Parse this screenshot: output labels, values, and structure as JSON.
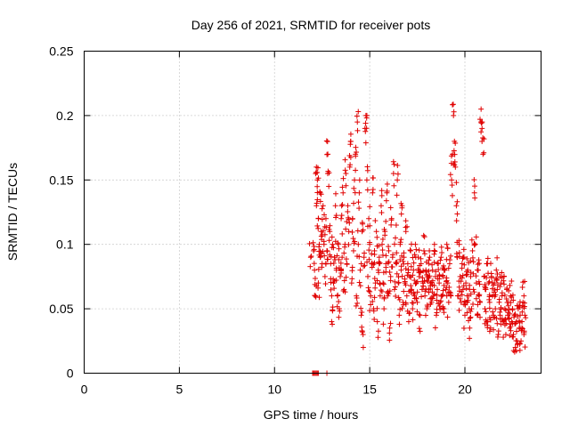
{
  "chart_data": {
    "type": "scatter",
    "title": "Day 256 of 2021, SRMTID for receiver pots",
    "xlabel": "GPS time / hours",
    "ylabel": "SRMTID / TECUs",
    "xlim": [
      0,
      24
    ],
    "ylim": [
      0,
      0.25
    ],
    "x_ticks": [
      0,
      5,
      10,
      15,
      20
    ],
    "x_tick_labels": [
      "0",
      "5",
      "10",
      "15",
      "20"
    ],
    "y_ticks": [
      0,
      0.05,
      0.1,
      0.15,
      0.2,
      0.25
    ],
    "y_tick_labels": [
      "0",
      "0.05",
      "0.1",
      "0.15",
      "0.2",
      "0.25"
    ],
    "grid": true,
    "marker": "plus",
    "series_color": "#e00000",
    "zero_points_x": [
      12.0,
      12.05,
      12.1,
      12.15,
      12.2,
      12.25,
      12.3,
      12.75
    ],
    "points": [
      [
        11.9,
        0.09
      ],
      [
        12.05,
        0.095
      ],
      [
        12.1,
        0.08
      ],
      [
        12.15,
        0.06
      ],
      [
        12.2,
        0.13
      ],
      [
        12.2,
        0.16
      ],
      [
        12.25,
        0.15
      ],
      [
        12.3,
        0.12
      ],
      [
        12.3,
        0.07
      ],
      [
        12.35,
        0.1
      ],
      [
        12.4,
        0.14
      ],
      [
        12.4,
        0.09
      ],
      [
        12.45,
        0.11
      ],
      [
        12.5,
        0.085
      ],
      [
        12.55,
        0.13
      ],
      [
        12.6,
        0.1
      ],
      [
        12.65,
        0.075
      ],
      [
        12.7,
        0.12
      ],
      [
        12.75,
        0.095
      ],
      [
        12.8,
        0.17
      ],
      [
        12.85,
        0.145
      ],
      [
        12.9,
        0.11
      ],
      [
        12.95,
        0.085
      ],
      [
        13.0,
        0.06
      ],
      [
        13.0,
        0.04
      ],
      [
        13.05,
        0.1
      ],
      [
        13.1,
        0.07
      ],
      [
        13.15,
        0.09
      ],
      [
        13.2,
        0.13
      ],
      [
        13.25,
        0.08
      ],
      [
        13.3,
        0.06
      ],
      [
        13.35,
        0.1
      ],
      [
        13.4,
        0.05
      ],
      [
        13.45,
        0.075
      ],
      [
        13.5,
        0.12
      ],
      [
        13.55,
        0.09
      ],
      [
        13.6,
        0.14
      ],
      [
        13.65,
        0.065
      ],
      [
        13.7,
        0.1
      ],
      [
        13.75,
        0.155
      ],
      [
        13.8,
        0.085
      ],
      [
        13.85,
        0.13
      ],
      [
        13.9,
        0.11
      ],
      [
        13.95,
        0.16
      ],
      [
        14.0,
        0.18
      ],
      [
        14.05,
        0.07
      ],
      [
        14.1,
        0.12
      ],
      [
        14.15,
        0.095
      ],
      [
        14.2,
        0.15
      ],
      [
        14.25,
        0.17
      ],
      [
        14.3,
        0.06
      ],
      [
        14.35,
        0.195
      ],
      [
        14.4,
        0.1
      ],
      [
        14.45,
        0.14
      ],
      [
        14.5,
        0.08
      ],
      [
        14.55,
        0.045
      ],
      [
        14.6,
        0.11
      ],
      [
        14.65,
        0.03
      ],
      [
        14.7,
        0.09
      ],
      [
        14.75,
        0.19
      ],
      [
        14.8,
        0.2
      ],
      [
        14.85,
        0.15
      ],
      [
        14.9,
        0.075
      ],
      [
        14.95,
        0.12
      ],
      [
        15.0,
        0.1
      ],
      [
        15.05,
        0.06
      ],
      [
        15.1,
        0.085
      ],
      [
        15.15,
        0.14
      ],
      [
        15.2,
        0.05
      ],
      [
        15.25,
        0.095
      ],
      [
        15.3,
        0.07
      ],
      [
        15.35,
        0.11
      ],
      [
        15.4,
        0.04
      ],
      [
        15.45,
        0.08
      ],
      [
        15.5,
        0.09
      ],
      [
        15.55,
        0.06
      ],
      [
        15.6,
        0.13
      ],
      [
        15.65,
        0.1
      ],
      [
        15.7,
        0.07
      ],
      [
        15.75,
        0.05
      ],
      [
        15.8,
        0.11
      ],
      [
        15.85,
        0.085
      ],
      [
        15.9,
        0.14
      ],
      [
        15.95,
        0.06
      ],
      [
        16.0,
        0.095
      ],
      [
        16.05,
        0.035
      ],
      [
        16.1,
        0.075
      ],
      [
        16.15,
        0.12
      ],
      [
        16.2,
        0.09
      ],
      [
        16.25,
        0.155
      ],
      [
        16.3,
        0.065
      ],
      [
        16.35,
        0.105
      ],
      [
        16.4,
        0.085
      ],
      [
        16.45,
        0.15
      ],
      [
        16.5,
        0.07
      ],
      [
        16.55,
        0.045
      ],
      [
        16.6,
        0.1
      ],
      [
        16.65,
        0.08
      ],
      [
        16.7,
        0.13
      ],
      [
        16.75,
        0.055
      ],
      [
        16.8,
        0.09
      ],
      [
        16.85,
        0.07
      ],
      [
        16.9,
        0.11
      ],
      [
        16.95,
        0.06
      ],
      [
        17.0,
        0.085
      ],
      [
        17.05,
        0.04
      ],
      [
        17.1,
        0.075
      ],
      [
        17.15,
        0.095
      ],
      [
        17.2,
        0.065
      ],
      [
        17.25,
        0.05
      ],
      [
        17.3,
        0.08
      ],
      [
        17.35,
        0.06
      ],
      [
        17.4,
        0.1
      ],
      [
        17.45,
        0.07
      ],
      [
        17.5,
        0.055
      ],
      [
        17.55,
        0.09
      ],
      [
        17.6,
        0.075
      ],
      [
        17.65,
        0.045
      ],
      [
        17.7,
        0.085
      ],
      [
        17.75,
        0.065
      ],
      [
        17.8,
        0.07
      ],
      [
        17.85,
        0.095
      ],
      [
        17.9,
        0.06
      ],
      [
        17.95,
        0.08
      ],
      [
        18.0,
        0.05
      ],
      [
        18.05,
        0.075
      ],
      [
        18.1,
        0.065
      ],
      [
        18.15,
        0.09
      ],
      [
        18.2,
        0.07
      ],
      [
        18.25,
        0.055
      ],
      [
        18.3,
        0.08
      ],
      [
        18.35,
        0.06
      ],
      [
        18.4,
        0.1
      ],
      [
        18.45,
        0.075
      ],
      [
        18.5,
        0.045
      ],
      [
        18.55,
        0.065
      ],
      [
        18.6,
        0.085
      ],
      [
        18.65,
        0.07
      ],
      [
        18.7,
        0.055
      ],
      [
        18.75,
        0.09
      ],
      [
        18.8,
        0.06
      ],
      [
        18.85,
        0.075
      ],
      [
        18.9,
        0.05
      ],
      [
        18.95,
        0.08
      ],
      [
        19.0,
        0.065
      ],
      [
        19.05,
        0.1
      ],
      [
        19.1,
        0.07
      ],
      [
        19.15,
        0.055
      ],
      [
        19.2,
        0.085
      ],
      [
        19.25,
        0.06
      ],
      [
        19.3,
        0.15
      ],
      [
        19.35,
        0.17
      ],
      [
        19.4,
        0.2
      ],
      [
        19.45,
        0.18
      ],
      [
        19.5,
        0.16
      ],
      [
        19.55,
        0.13
      ],
      [
        19.6,
        0.09
      ],
      [
        19.65,
        0.06
      ],
      [
        19.7,
        0.1
      ],
      [
        19.75,
        0.075
      ],
      [
        19.8,
        0.055
      ],
      [
        19.85,
        0.085
      ],
      [
        19.9,
        0.065
      ],
      [
        19.95,
        0.09
      ],
      [
        20.0,
        0.045
      ],
      [
        20.05,
        0.07
      ],
      [
        20.1,
        0.055
      ],
      [
        20.15,
        0.08
      ],
      [
        20.2,
        0.06
      ],
      [
        20.25,
        0.035
      ],
      [
        20.3,
        0.075
      ],
      [
        20.35,
        0.05
      ],
      [
        20.4,
        0.095
      ],
      [
        20.45,
        0.065
      ],
      [
        20.5,
        0.14
      ],
      [
        20.55,
        0.1
      ],
      [
        20.6,
        0.07
      ],
      [
        20.65,
        0.045
      ],
      [
        20.7,
        0.08
      ],
      [
        20.75,
        0.06
      ],
      [
        20.8,
        0.055
      ],
      [
        20.85,
        0.205
      ],
      [
        20.9,
        0.19
      ],
      [
        20.95,
        0.17
      ],
      [
        21.0,
        0.075
      ],
      [
        21.05,
        0.05
      ],
      [
        21.1,
        0.065
      ],
      [
        21.15,
        0.085
      ],
      [
        21.2,
        0.04
      ],
      [
        21.25,
        0.07
      ],
      [
        21.3,
        0.055
      ],
      [
        21.35,
        0.035
      ],
      [
        21.4,
        0.075
      ],
      [
        21.45,
        0.06
      ],
      [
        21.5,
        0.045
      ],
      [
        21.55,
        0.07
      ],
      [
        21.6,
        0.05
      ],
      [
        21.65,
        0.08
      ],
      [
        21.7,
        0.065
      ],
      [
        21.75,
        0.03
      ],
      [
        21.8,
        0.055
      ],
      [
        21.85,
        0.045
      ],
      [
        21.9,
        0.07
      ],
      [
        21.95,
        0.06
      ],
      [
        22.0,
        0.04
      ],
      [
        22.05,
        0.075
      ],
      [
        22.1,
        0.05
      ],
      [
        22.15,
        0.03
      ],
      [
        22.2,
        0.065
      ],
      [
        22.25,
        0.045
      ],
      [
        22.3,
        0.055
      ],
      [
        22.35,
        0.035
      ],
      [
        22.4,
        0.06
      ],
      [
        22.45,
        0.04
      ],
      [
        22.5,
        0.05
      ],
      [
        22.55,
        0.03
      ],
      [
        22.6,
        0.045
      ],
      [
        22.65,
        0.02
      ],
      [
        22.7,
        0.04
      ],
      [
        22.75,
        0.025
      ],
      [
        22.8,
        0.05
      ],
      [
        22.85,
        0.035
      ],
      [
        22.9,
        0.045
      ],
      [
        22.95,
        0.025
      ],
      [
        23.0,
        0.04
      ],
      [
        23.05,
        0.055
      ],
      [
        23.1,
        0.03
      ],
      [
        23.1,
        0.06
      ],
      [
        23.15,
        0.045
      ]
    ]
  }
}
